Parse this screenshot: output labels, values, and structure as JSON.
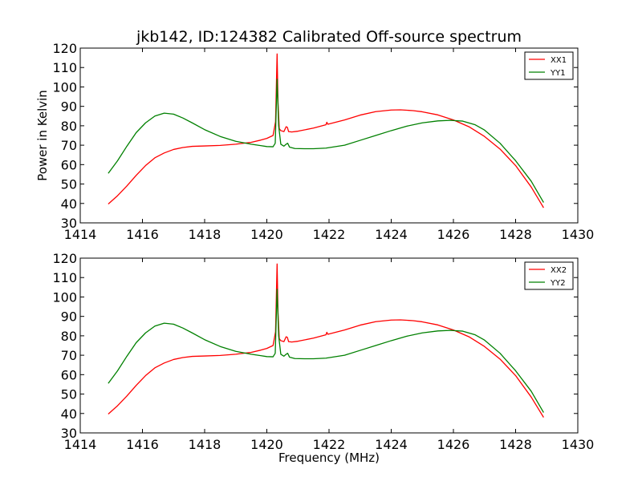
{
  "figure": {
    "title": "jkb142, ID:124382 Calibrated Off-source spectrum",
    "colors": {
      "xx": "#ff0000",
      "yy": "#008000",
      "axes": "#000000",
      "background": "#ffffff"
    }
  },
  "chart_data": [
    {
      "type": "line",
      "title": "jkb142, ID:124382 Calibrated Off-source spectrum",
      "xlabel": "",
      "ylabel": "Power in Kelvin",
      "xlim": [
        1414,
        1430
      ],
      "ylim": [
        30,
        120
      ],
      "xticks": [
        1414,
        1416,
        1418,
        1420,
        1422,
        1424,
        1426,
        1428,
        1430
      ],
      "yticks": [
        30,
        40,
        50,
        60,
        70,
        80,
        90,
        100,
        110,
        120
      ],
      "grid": false,
      "legend": "top-right",
      "series": [
        {
          "name": "XX1",
          "color": "#ff0000",
          "x": [
            1414.9,
            1415.2,
            1415.5,
            1415.8,
            1416.1,
            1416.4,
            1416.7,
            1417.0,
            1417.3,
            1417.6,
            1418.0,
            1418.5,
            1419.0,
            1419.5,
            1419.8,
            1420.0,
            1420.2,
            1420.28,
            1420.33,
            1420.36,
            1420.4,
            1420.45,
            1420.55,
            1420.62,
            1420.66,
            1420.7,
            1420.8,
            1421.0,
            1421.5,
            1421.9,
            1421.93,
            1421.96,
            1422.5,
            1423.0,
            1423.5,
            1424.0,
            1424.3,
            1424.7,
            1425.0,
            1425.5,
            1426.0,
            1426.5,
            1427.0,
            1427.5,
            1428.0,
            1428.5,
            1428.9
          ],
          "y": [
            39.7,
            44.0,
            49.0,
            54.5,
            59.5,
            63.5,
            66.0,
            67.8,
            68.8,
            69.4,
            69.6,
            69.9,
            70.5,
            71.5,
            72.6,
            73.5,
            75.0,
            82.0,
            117.0,
            92.0,
            78.5,
            77.5,
            77.0,
            79.5,
            79.2,
            77.0,
            76.8,
            77.2,
            78.8,
            80.5,
            81.8,
            80.8,
            83.0,
            85.5,
            87.3,
            88.1,
            88.2,
            87.8,
            87.2,
            85.6,
            83.0,
            79.5,
            74.5,
            68.0,
            59.5,
            48.5,
            37.8
          ]
        },
        {
          "name": "YY1",
          "color": "#008000",
          "x": [
            1414.9,
            1415.2,
            1415.5,
            1415.8,
            1416.1,
            1416.4,
            1416.7,
            1417.0,
            1417.3,
            1417.6,
            1418.0,
            1418.5,
            1419.0,
            1419.5,
            1419.8,
            1420.0,
            1420.2,
            1420.27,
            1420.33,
            1420.38,
            1420.45,
            1420.55,
            1420.62,
            1420.67,
            1420.73,
            1420.9,
            1421.2,
            1421.5,
            1421.9,
            1422.5,
            1423.0,
            1423.5,
            1424.0,
            1424.5,
            1425.0,
            1425.5,
            1425.9,
            1426.3,
            1426.7,
            1427.0,
            1427.5,
            1428.0,
            1428.5,
            1428.9
          ],
          "y": [
            55.5,
            62.0,
            69.5,
            76.5,
            81.5,
            85.0,
            86.5,
            86.0,
            84.0,
            81.5,
            78.0,
            74.5,
            72.0,
            70.5,
            69.8,
            69.3,
            69.2,
            71.0,
            104.0,
            80.0,
            70.5,
            69.5,
            70.5,
            71.0,
            69.0,
            68.3,
            68.2,
            68.2,
            68.5,
            70.0,
            72.5,
            75.0,
            77.5,
            79.8,
            81.5,
            82.5,
            82.8,
            82.4,
            80.5,
            77.8,
            71.0,
            62.0,
            51.5,
            40.5
          ]
        }
      ]
    },
    {
      "type": "line",
      "title": "",
      "xlabel": "Frequency (MHz)",
      "ylabel": "",
      "xlim": [
        1414,
        1430
      ],
      "ylim": [
        30,
        120
      ],
      "xticks": [
        1414,
        1416,
        1418,
        1420,
        1422,
        1424,
        1426,
        1428,
        1430
      ],
      "yticks": [
        30,
        40,
        50,
        60,
        70,
        80,
        90,
        100,
        110,
        120
      ],
      "grid": false,
      "legend": "top-right",
      "series": [
        {
          "name": "XX2",
          "color": "#ff0000",
          "x": [
            1414.9,
            1415.2,
            1415.5,
            1415.8,
            1416.1,
            1416.4,
            1416.7,
            1417.0,
            1417.3,
            1417.6,
            1418.0,
            1418.5,
            1419.0,
            1419.5,
            1419.8,
            1420.0,
            1420.2,
            1420.28,
            1420.33,
            1420.36,
            1420.4,
            1420.45,
            1420.55,
            1420.62,
            1420.66,
            1420.7,
            1420.8,
            1421.0,
            1421.5,
            1421.9,
            1421.93,
            1421.96,
            1422.5,
            1423.0,
            1423.5,
            1424.0,
            1424.3,
            1424.7,
            1425.0,
            1425.5,
            1426.0,
            1426.5,
            1427.0,
            1427.5,
            1428.0,
            1428.5,
            1428.9
          ],
          "y": [
            39.7,
            44.0,
            49.0,
            54.5,
            59.5,
            63.5,
            66.0,
            67.8,
            68.8,
            69.4,
            69.6,
            69.9,
            70.5,
            71.5,
            72.6,
            73.5,
            75.0,
            82.0,
            117.0,
            92.0,
            78.5,
            77.5,
            77.0,
            79.5,
            79.2,
            77.0,
            76.8,
            77.2,
            78.8,
            80.5,
            81.8,
            80.8,
            83.0,
            85.5,
            87.3,
            88.1,
            88.2,
            87.8,
            87.2,
            85.6,
            83.0,
            79.5,
            74.5,
            68.0,
            59.5,
            48.5,
            38.0
          ]
        },
        {
          "name": "YY2",
          "color": "#008000",
          "x": [
            1414.9,
            1415.2,
            1415.5,
            1415.8,
            1416.1,
            1416.4,
            1416.7,
            1417.0,
            1417.3,
            1417.6,
            1418.0,
            1418.5,
            1419.0,
            1419.5,
            1419.8,
            1420.0,
            1420.2,
            1420.27,
            1420.33,
            1420.38,
            1420.45,
            1420.55,
            1420.62,
            1420.67,
            1420.73,
            1420.9,
            1421.2,
            1421.5,
            1421.9,
            1422.5,
            1423.0,
            1423.5,
            1424.0,
            1424.5,
            1425.0,
            1425.5,
            1425.9,
            1426.3,
            1426.7,
            1427.0,
            1427.5,
            1428.0,
            1428.5,
            1428.9
          ],
          "y": [
            55.5,
            62.0,
            69.5,
            76.5,
            81.5,
            85.0,
            86.5,
            86.0,
            84.0,
            81.5,
            78.0,
            74.5,
            72.0,
            70.5,
            69.8,
            69.3,
            69.2,
            71.0,
            104.0,
            80.0,
            70.5,
            69.5,
            70.5,
            71.0,
            69.0,
            68.3,
            68.2,
            68.2,
            68.5,
            70.0,
            72.5,
            75.0,
            77.5,
            79.8,
            81.5,
            82.5,
            82.8,
            82.4,
            80.5,
            77.8,
            71.0,
            62.0,
            51.5,
            40.5
          ]
        }
      ]
    }
  ]
}
